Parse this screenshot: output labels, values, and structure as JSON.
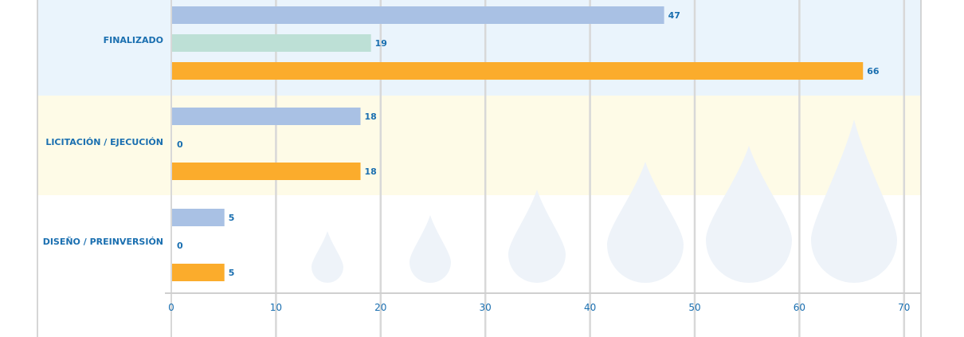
{
  "chart_data": {
    "type": "bar",
    "orientation": "horizontal",
    "categories": [
      "FINALIZADO",
      "LICITACIÓN / EJECUCIÓN",
      "DISEÑO / PREINVERSIÓN"
    ],
    "series": [
      {
        "values": [
          47,
          18,
          5
        ],
        "color": "#a9c1e4"
      },
      {
        "values": [
          19,
          0,
          0
        ],
        "color": "#bde0d6"
      },
      {
        "values": [
          66,
          18,
          5
        ],
        "color": "#fbac2c"
      }
    ],
    "xticks": [
      0,
      10,
      20,
      30,
      40,
      50,
      60,
      70
    ],
    "xlim": [
      0,
      70
    ],
    "grid": true,
    "band_colors": [
      "#eaf4fc",
      "#fefbe7",
      "#ffffff"
    ],
    "label_color": "#1a6fb0"
  }
}
